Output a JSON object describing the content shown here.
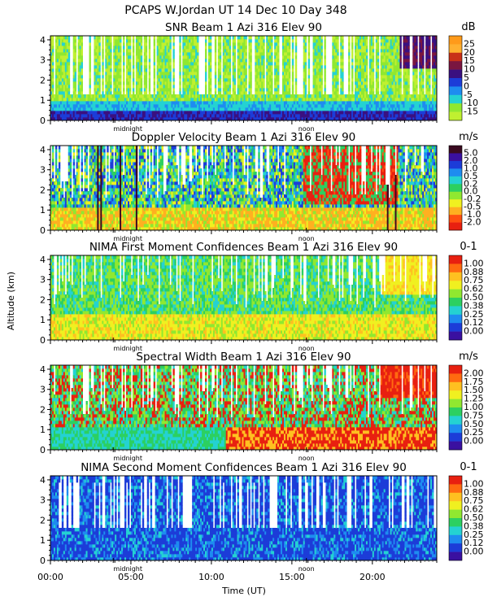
{
  "figure": {
    "title": "PCAPS W.Jordan UT  14 Dec 10 Day 348",
    "y_axis_label": "Altitude (km)",
    "x_axis_label": "Time (UT)",
    "x_tick_labels": [
      "00:00",
      "05:00",
      "10:00",
      "15:00",
      "20:00"
    ],
    "x_tick_hours": [
      0,
      5,
      10,
      15,
      20
    ],
    "midnight_label": "midnight",
    "noon_label": "noon",
    "midnight_hour": 3.9,
    "noon_hour": 15.9
  },
  "chart_data": [
    {
      "type": "heatmap",
      "title": "SNR Beam 1 Azi 316 Elev 90",
      "unit": "dB",
      "xlabel": "Time (UT)",
      "ylabel": "Altitude (km)",
      "xlim": [
        0,
        24
      ],
      "ylim": [
        0,
        4.2
      ],
      "y_tick_labels": [
        "0",
        "1",
        "2",
        "3",
        "4"
      ],
      "colorbar_labels": [
        "25",
        "20",
        "15",
        "10",
        "5",
        "0",
        "-5",
        "-10",
        "-15"
      ],
      "colorbar_colors": [
        "#ff9a1a",
        "#ffb030",
        "#c83018",
        "#7a1640",
        "#3a1080",
        "#1c3cd8",
        "#1e8cf0",
        "#24d2d2",
        "#90e830",
        "#c0f030"
      ]
    },
    {
      "type": "heatmap",
      "title": "Doppler Velocity Beam 1 Azi 316 Elev 90",
      "unit": "m/s",
      "xlabel": "Time (UT)",
      "ylabel": "Altitude (km)",
      "xlim": [
        0,
        24
      ],
      "ylim": [
        0,
        4.2
      ],
      "y_tick_labels": [
        "0",
        "1",
        "2",
        "3",
        "4"
      ],
      "colorbar_labels": [
        "5.0",
        "2.0",
        "1.0",
        "0.5",
        "0.2",
        "0.0",
        "-0.2",
        "-0.5",
        "-1.0",
        "-2.0"
      ],
      "colorbar_colors": [
        "#3a0a20",
        "#3a10a0",
        "#1c3cd8",
        "#1e8cf0",
        "#24d2d2",
        "#2cd060",
        "#90e830",
        "#f0f020",
        "#ffb020",
        "#ff5010",
        "#e82010"
      ]
    },
    {
      "type": "heatmap",
      "title": "NIMA First Moment Confidences Beam 1 Azi 316 Elev 90",
      "unit": "0-1",
      "xlabel": "Time (UT)",
      "ylabel": "Altitude (km)",
      "xlim": [
        0,
        24
      ],
      "ylim": [
        0,
        4.2
      ],
      "y_tick_labels": [
        "0",
        "1",
        "2",
        "3",
        "4"
      ],
      "colorbar_labels": [
        "1.00",
        "0.88",
        "0.75",
        "0.62",
        "0.50",
        "0.38",
        "0.25",
        "0.12",
        "0.00"
      ],
      "colorbar_colors": [
        "#e82010",
        "#ff6a10",
        "#ffc020",
        "#f0f020",
        "#90e830",
        "#2cd060",
        "#24d2d2",
        "#1e8cf0",
        "#1c3cd8",
        "#3a10a0"
      ]
    },
    {
      "type": "heatmap",
      "title": "Spectral Width Beam 1 Azi 316 Elev 90",
      "unit": "m/s",
      "xlabel": "Time (UT)",
      "ylabel": "Altitude (km)",
      "xlim": [
        0,
        24
      ],
      "ylim": [
        0,
        4.2
      ],
      "y_tick_labels": [
        "0",
        "1",
        "2",
        "3",
        "4"
      ],
      "colorbar_labels": [
        "2.00",
        "1.75",
        "1.50",
        "1.25",
        "1.00",
        "0.75",
        "0.50",
        "0.25",
        "0.00"
      ],
      "colorbar_colors": [
        "#e82010",
        "#ff6a10",
        "#ffc020",
        "#f0f020",
        "#90e830",
        "#2cd060",
        "#24d2d2",
        "#1e8cf0",
        "#1c3cd8",
        "#3a10a0"
      ]
    },
    {
      "type": "heatmap",
      "title": "NIMA Second Moment Confidences Beam 1 Azi 316 Elev 90",
      "unit": "0-1",
      "xlabel": "Time (UT)",
      "ylabel": "Altitude (km)",
      "xlim": [
        0,
        24
      ],
      "ylim": [
        0,
        4.2
      ],
      "y_tick_labels": [
        "0",
        "1",
        "2",
        "3",
        "4"
      ],
      "colorbar_labels": [
        "1.00",
        "0.88",
        "0.75",
        "0.62",
        "0.50",
        "0.38",
        "0.25",
        "0.12",
        "0.00"
      ],
      "colorbar_colors": [
        "#e82010",
        "#ff6a10",
        "#ffc020",
        "#f0f020",
        "#90e830",
        "#2cd060",
        "#24d2d2",
        "#1e8cf0",
        "#1c3cd8",
        "#3a10a0"
      ]
    }
  ]
}
